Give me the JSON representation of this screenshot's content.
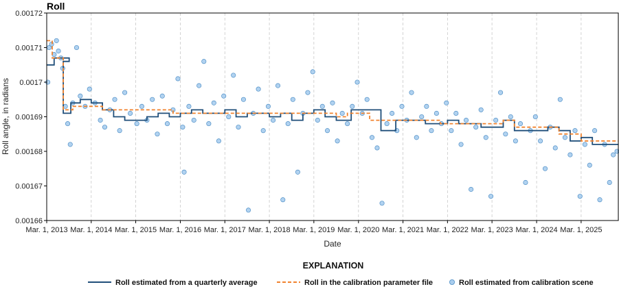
{
  "chart_data": {
    "type": "scatter",
    "title": "Roll",
    "xlabel": "Date",
    "ylabel": "Roll angle, in radians",
    "x_tick_labels": [
      "Mar. 1, 2013",
      "Mar. 1, 2014",
      "Mar. 1, 2015",
      "Mar. 1, 2016",
      "Mar. 1, 2017",
      "Mar. 1, 2018",
      "Mar. 1, 2019",
      "Mar. 1, 2020",
      "Mar. 1, 2021",
      "Mar. 1, 2022",
      "Mar. 1, 2023",
      "Mar. 1, 2024",
      "Mar. 1, 2025"
    ],
    "y_tick_labels": [
      "0.00166",
      "0.00167",
      "0.00168",
      "0.00169",
      "0.0017",
      "0.00171",
      "0.00172"
    ],
    "xlim": [
      "2013-03-01",
      "2025-12-31"
    ],
    "ylim": [
      0.00166,
      0.00172
    ],
    "grid": "vertical dashed at year ticks",
    "legend_title": "EXPLANATION",
    "legend_position": "bottom",
    "series": [
      {
        "name": "Roll estimated from a quarterly average",
        "kind": "step",
        "color": "#1f4e79",
        "points": [
          [
            "2013-03-01",
            0.001705
          ],
          [
            "2013-05-01",
            0.001707
          ],
          [
            "2013-09-01",
            0.001706
          ],
          [
            "2013-07-15",
            0.001706
          ],
          [
            "2013-07-15",
            0.001691
          ],
          [
            "2013-09-15",
            0.001694
          ],
          [
            "2013-12-01",
            0.001695
          ],
          [
            "2014-03-01",
            0.001694
          ],
          [
            "2014-06-01",
            0.001692
          ],
          [
            "2014-09-01",
            0.00169
          ],
          [
            "2014-12-01",
            0.001689
          ],
          [
            "2015-03-01",
            0.001689
          ],
          [
            "2015-06-01",
            0.00169
          ],
          [
            "2015-09-01",
            0.001691
          ],
          [
            "2015-12-01",
            0.00169
          ],
          [
            "2016-03-01",
            0.001691
          ],
          [
            "2016-06-01",
            0.001692
          ],
          [
            "2016-09-01",
            0.001691
          ],
          [
            "2016-12-01",
            0.001691
          ],
          [
            "2017-03-01",
            0.001692
          ],
          [
            "2017-06-01",
            0.00169
          ],
          [
            "2017-09-01",
            0.001691
          ],
          [
            "2017-12-01",
            0.001691
          ],
          [
            "2018-03-01",
            0.00169
          ],
          [
            "2018-06-01",
            0.001691
          ],
          [
            "2018-09-01",
            0.001689
          ],
          [
            "2018-12-01",
            0.001691
          ],
          [
            "2019-03-01",
            0.001692
          ],
          [
            "2019-06-01",
            0.00169
          ],
          [
            "2019-09-01",
            0.001689
          ],
          [
            "2019-12-01",
            0.001689
          ],
          [
            "2020-01-01",
            0.001692
          ],
          [
            "2020-06-01",
            0.001692
          ],
          [
            "2020-09-01",
            0.001686
          ],
          [
            "2020-12-01",
            0.001686
          ],
          [
            "2021-01-01",
            0.001689
          ],
          [
            "2021-06-01",
            0.001689
          ],
          [
            "2021-09-01",
            0.001688
          ],
          [
            "2021-12-01",
            0.001688
          ],
          [
            "2022-03-01",
            0.001689
          ],
          [
            "2022-06-01",
            0.001688
          ],
          [
            "2022-09-01",
            0.001688
          ],
          [
            "2022-12-01",
            0.001687
          ],
          [
            "2023-03-01",
            0.001687
          ],
          [
            "2023-06-01",
            0.001689
          ],
          [
            "2023-09-01",
            0.001686
          ],
          [
            "2023-12-01",
            0.001686
          ],
          [
            "2024-03-01",
            0.001686
          ],
          [
            "2024-06-01",
            0.001687
          ],
          [
            "2024-09-01",
            0.001686
          ],
          [
            "2024-12-01",
            0.001683
          ],
          [
            "2025-03-01",
            0.001684
          ],
          [
            "2025-06-01",
            0.001682
          ],
          [
            "2025-09-01",
            0.001682
          ],
          [
            "2025-12-31",
            0.001682
          ]
        ]
      },
      {
        "name": "Roll in the calibration parameter file",
        "kind": "dashed-step",
        "color": "#f0822d",
        "points": [
          [
            "2013-03-01",
            0.001712
          ],
          [
            "2013-04-15",
            0.001712
          ],
          [
            "2013-04-15",
            0.001707
          ],
          [
            "2013-07-15",
            0.001707
          ],
          [
            "2013-07-15",
            0.001692
          ],
          [
            "2013-10-01",
            0.001692
          ],
          [
            "2013-10-01",
            0.001693
          ],
          [
            "2014-06-01",
            0.001693
          ],
          [
            "2014-06-01",
            0.001692
          ],
          [
            "2016-01-01",
            0.001692
          ],
          [
            "2016-01-01",
            0.001691
          ],
          [
            "2019-09-01",
            0.001691
          ],
          [
            "2019-09-01",
            0.00169
          ],
          [
            "2019-12-01",
            0.00169
          ],
          [
            "2019-12-01",
            0.001691
          ],
          [
            "2020-06-01",
            0.001691
          ],
          [
            "2020-06-01",
            0.001689
          ],
          [
            "2022-01-01",
            0.001689
          ],
          [
            "2022-01-01",
            0.001688
          ],
          [
            "2023-06-01",
            0.001688
          ],
          [
            "2023-06-01",
            0.001689
          ],
          [
            "2023-09-01",
            0.001689
          ],
          [
            "2023-09-01",
            0.001687
          ],
          [
            "2024-09-01",
            0.001687
          ],
          [
            "2024-09-01",
            0.001685
          ],
          [
            "2025-03-01",
            0.001685
          ],
          [
            "2025-03-01",
            0.001683
          ],
          [
            "2025-12-31",
            0.001683
          ]
        ]
      },
      {
        "name": "Roll estimated from calibration scene",
        "kind": "scatter",
        "color": "#a9cdee",
        "edge_color": "#4f8fc6",
        "points": [
          [
            "2013-03-10",
            0.0017
          ],
          [
            "2013-03-20",
            0.00171
          ],
          [
            "2013-04-10",
            0.001711
          ],
          [
            "2013-05-01",
            0.001708
          ],
          [
            "2013-05-20",
            0.001712
          ],
          [
            "2013-06-05",
            0.001709
          ],
          [
            "2013-06-25",
            0.001707
          ],
          [
            "2013-07-10",
            0.001704
          ],
          [
            "2013-08-01",
            0.001693
          ],
          [
            "2013-08-20",
            0.001688
          ],
          [
            "2013-09-10",
            0.001682
          ],
          [
            "2013-10-01",
            0.001694
          ],
          [
            "2013-11-01",
            0.00171
          ],
          [
            "2013-12-01",
            0.001696
          ],
          [
            "2014-01-10",
            0.001693
          ],
          [
            "2014-02-15",
            0.001698
          ],
          [
            "2014-04-01",
            0.001694
          ],
          [
            "2014-05-15",
            0.001689
          ],
          [
            "2014-06-20",
            0.001687
          ],
          [
            "2014-08-01",
            0.001692
          ],
          [
            "2014-09-10",
            0.001695
          ],
          [
            "2014-10-20",
            0.001686
          ],
          [
            "2014-12-01",
            0.001697
          ],
          [
            "2015-01-15",
            0.001691
          ],
          [
            "2015-03-10",
            0.001688
          ],
          [
            "2015-04-20",
            0.001693
          ],
          [
            "2015-06-01",
            0.001689
          ],
          [
            "2015-07-15",
            0.001695
          ],
          [
            "2015-08-25",
            0.001685
          ],
          [
            "2015-10-05",
            0.001696
          ],
          [
            "2015-11-15",
            0.001688
          ],
          [
            "2016-01-01",
            0.001692
          ],
          [
            "2016-02-10",
            0.001701
          ],
          [
            "2016-03-20",
            0.001687
          ],
          [
            "2016-04-01",
            0.001674
          ],
          [
            "2016-05-10",
            0.001693
          ],
          [
            "2016-06-20",
            0.001689
          ],
          [
            "2016-08-01",
            0.001699
          ],
          [
            "2016-09-10",
            0.001706
          ],
          [
            "2016-10-20",
            0.001688
          ],
          [
            "2016-12-01",
            0.001694
          ],
          [
            "2017-01-10",
            0.001683
          ],
          [
            "2017-02-20",
            0.001696
          ],
          [
            "2017-04-01",
            0.00169
          ],
          [
            "2017-05-10",
            0.001702
          ],
          [
            "2017-06-20",
            0.001687
          ],
          [
            "2017-08-01",
            0.001695
          ],
          [
            "2017-09-10",
            0.001663
          ],
          [
            "2017-10-20",
            0.001691
          ],
          [
            "2017-12-01",
            0.001698
          ],
          [
            "2018-01-10",
            0.001686
          ],
          [
            "2018-02-20",
            0.001693
          ],
          [
            "2018-04-01",
            0.001689
          ],
          [
            "2018-05-10",
            0.001699
          ],
          [
            "2018-06-20",
            0.001666
          ],
          [
            "2018-08-01",
            0.001688
          ],
          [
            "2018-09-10",
            0.001695
          ],
          [
            "2018-10-20",
            0.001674
          ],
          [
            "2018-12-01",
            0.001691
          ],
          [
            "2019-01-10",
            0.001697
          ],
          [
            "2019-02-20",
            0.001703
          ],
          [
            "2019-04-01",
            0.001689
          ],
          [
            "2019-05-10",
            0.001693
          ],
          [
            "2019-06-20",
            0.001686
          ],
          [
            "2019-08-01",
            0.001694
          ],
          [
            "2019-09-10",
            0.001683
          ],
          [
            "2019-10-20",
            0.001691
          ],
          [
            "2019-12-01",
            0.001688
          ],
          [
            "2020-01-10",
            0.001693
          ],
          [
            "2020-02-20",
            0.0017
          ],
          [
            "2020-04-01",
            0.001691
          ],
          [
            "2020-05-10",
            0.001695
          ],
          [
            "2020-06-20",
            0.001684
          ],
          [
            "2020-08-01",
            0.001681
          ],
          [
            "2020-09-10",
            0.001665
          ],
          [
            "2020-10-20",
            0.001688
          ],
          [
            "2020-12-01",
            0.001691
          ],
          [
            "2021-01-10",
            0.001686
          ],
          [
            "2021-02-20",
            0.001693
          ],
          [
            "2021-04-01",
            0.001689
          ],
          [
            "2021-05-10",
            0.001697
          ],
          [
            "2021-06-20",
            0.001684
          ],
          [
            "2021-08-01",
            0.00169
          ],
          [
            "2021-09-10",
            0.001693
          ],
          [
            "2021-10-20",
            0.001686
          ],
          [
            "2021-12-01",
            0.001691
          ],
          [
            "2022-01-10",
            0.001688
          ],
          [
            "2022-02-20",
            0.001694
          ],
          [
            "2022-04-01",
            0.001686
          ],
          [
            "2022-05-10",
            0.001691
          ],
          [
            "2022-06-20",
            0.001682
          ],
          [
            "2022-08-01",
            0.001689
          ],
          [
            "2022-09-10",
            0.001669
          ],
          [
            "2022-10-20",
            0.001687
          ],
          [
            "2022-12-01",
            0.001692
          ],
          [
            "2023-01-10",
            0.001684
          ],
          [
            "2023-02-20",
            0.001667
          ],
          [
            "2023-04-01",
            0.001689
          ],
          [
            "2023-05-10",
            0.001697
          ],
          [
            "2023-06-20",
            0.001685
          ],
          [
            "2023-08-01",
            0.00169
          ],
          [
            "2023-09-10",
            0.001683
          ],
          [
            "2023-10-20",
            0.001688
          ],
          [
            "2023-12-01",
            0.001671
          ],
          [
            "2024-01-10",
            0.001686
          ],
          [
            "2024-02-20",
            0.00169
          ],
          [
            "2024-04-01",
            0.001683
          ],
          [
            "2024-05-10",
            0.001675
          ],
          [
            "2024-06-20",
            0.001687
          ],
          [
            "2024-08-01",
            0.001681
          ],
          [
            "2024-09-10",
            0.001695
          ],
          [
            "2024-10-20",
            0.001684
          ],
          [
            "2024-12-01",
            0.001679
          ],
          [
            "2025-01-10",
            0.001686
          ],
          [
            "2025-02-20",
            0.001667
          ],
          [
            "2025-04-01",
            0.001682
          ],
          [
            "2025-05-10",
            0.001676
          ],
          [
            "2025-06-20",
            0.001686
          ],
          [
            "2025-08-01",
            0.001666
          ],
          [
            "2025-09-10",
            0.001682
          ],
          [
            "2025-10-20",
            0.001671
          ],
          [
            "2025-11-20",
            0.001679
          ],
          [
            "2025-12-20",
            0.00168
          ]
        ]
      }
    ]
  }
}
